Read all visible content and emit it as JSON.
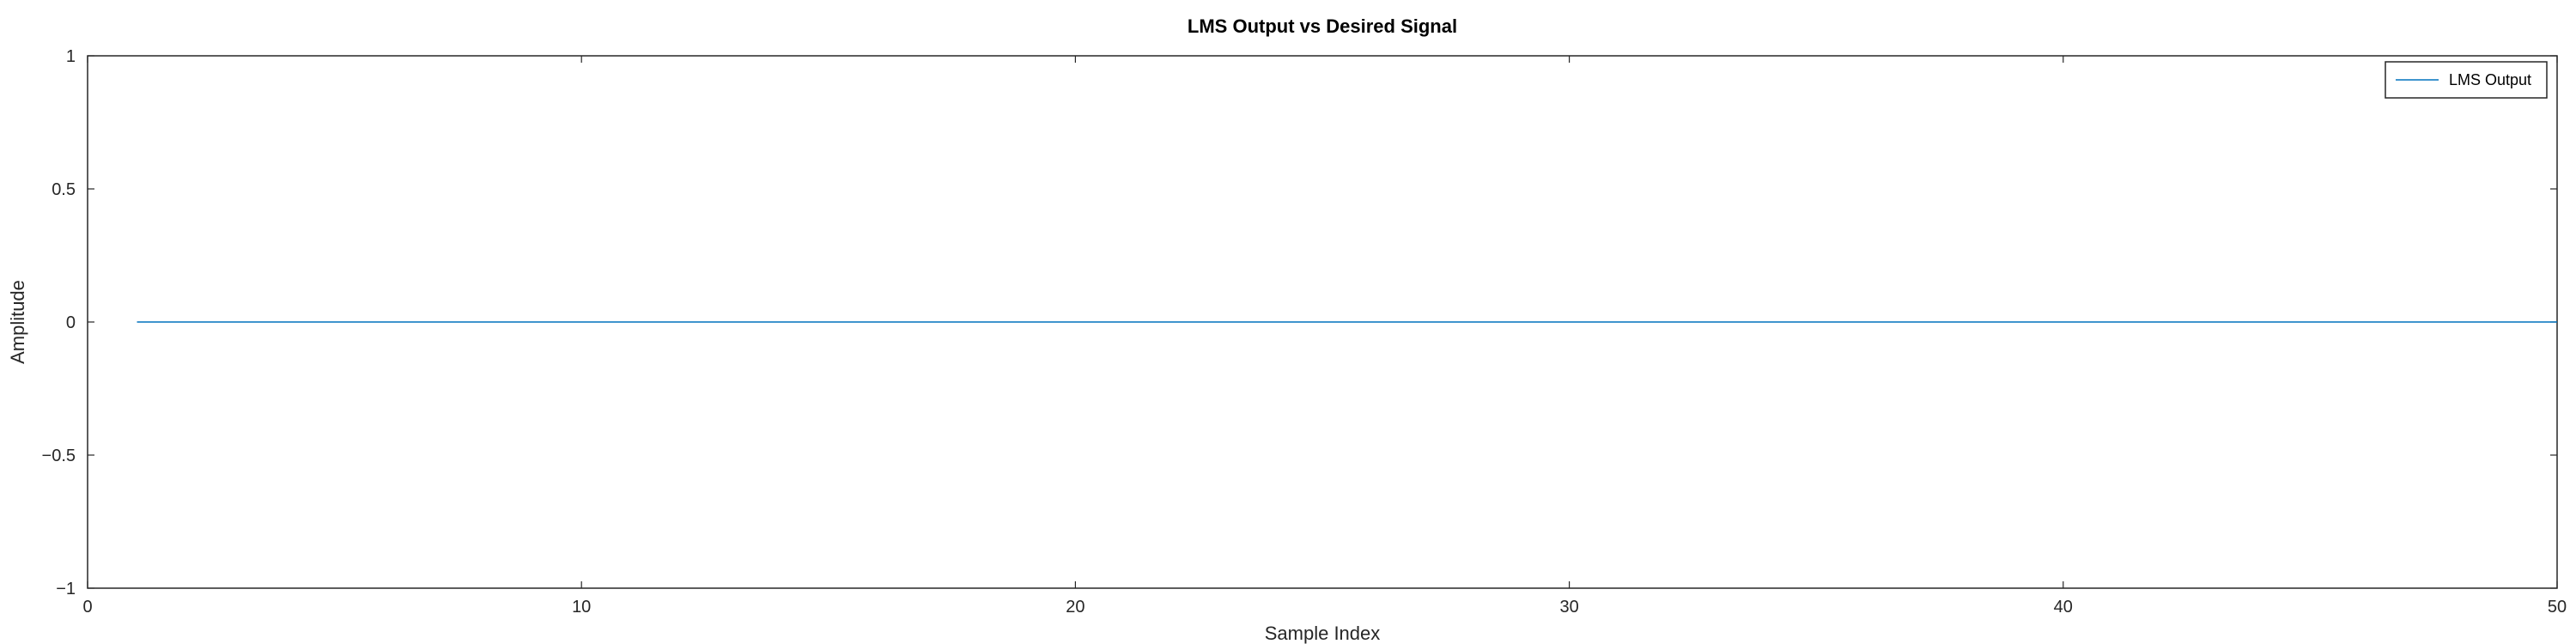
{
  "chart_data": {
    "type": "line",
    "title": "LMS Output vs Desired Signal",
    "xlabel": "Sample Index",
    "ylabel": "Amplitude",
    "xlim": [
      0,
      50
    ],
    "ylim": [
      -1,
      1
    ],
    "x_ticks": [
      0,
      10,
      20,
      30,
      40,
      50
    ],
    "x_tick_labels": [
      "0",
      "10",
      "20",
      "30",
      "40",
      "50"
    ],
    "y_ticks": [
      1,
      0.5,
      0,
      -0.5,
      -1
    ],
    "y_tick_labels": [
      "1",
      "0.5",
      "0",
      "−0.5",
      "−1"
    ],
    "grid": false,
    "legend_location": "top-right",
    "series": [
      {
        "name": "LMS Output",
        "color": "#0072BD",
        "x": [
          1,
          50
        ],
        "y": [
          0,
          0
        ]
      }
    ]
  }
}
